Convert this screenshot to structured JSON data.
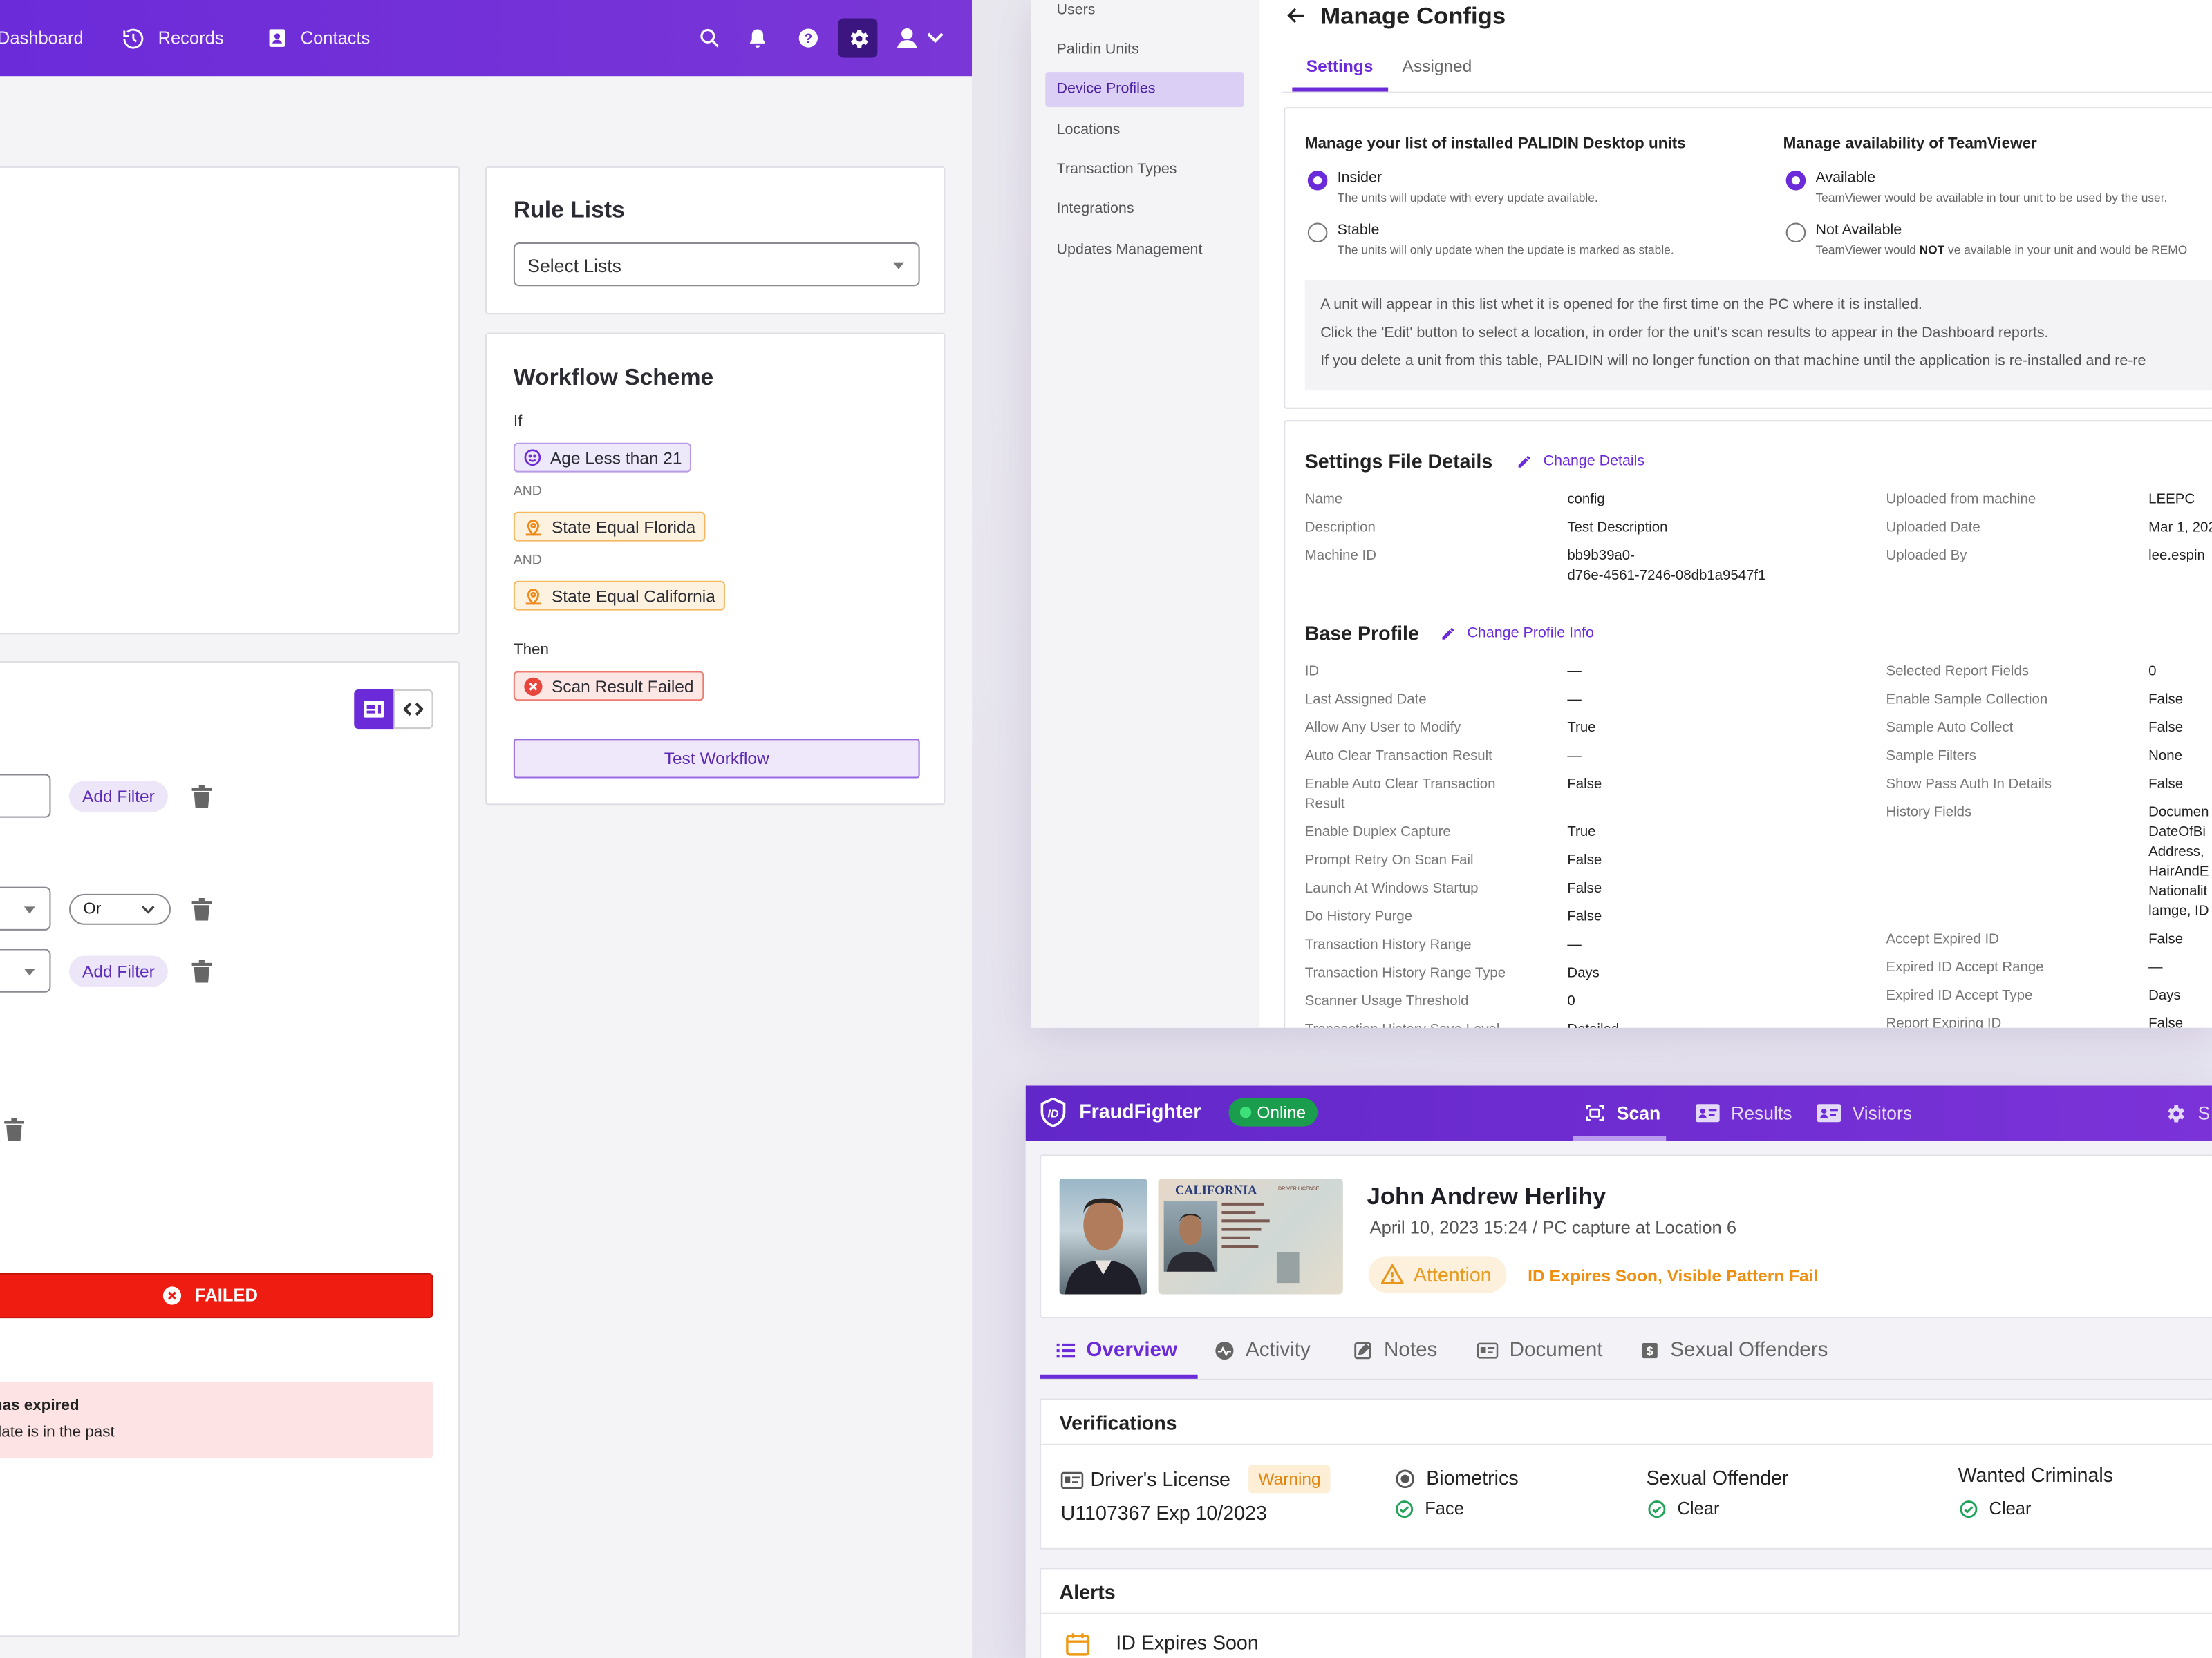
{
  "left_app": {
    "nav": {
      "dashboard": "Dashboard",
      "records": "Records",
      "contacts": "Contacts"
    },
    "rule_lists": {
      "title": "Rule Lists",
      "select_placeholder": "Select Lists"
    },
    "workflow": {
      "title": "Workflow Scheme",
      "if_label": "If",
      "conditions": [
        "Age Less than 21",
        "State Equal Florida",
        "State Equal California"
      ],
      "and_label": "AND",
      "then_label": "Then",
      "result": "Scan Result Failed",
      "test_button": "Test Workflow"
    },
    "filters": {
      "add_filter": "Add Filter",
      "or_option": "Or"
    },
    "status": {
      "failed": "FAILED",
      "message_line1": "has expired",
      "message_line2": "date is in the past"
    }
  },
  "configs": {
    "sidebar": [
      "Users",
      "Palidin Units",
      "Device Profiles",
      "Locations",
      "Transaction Types",
      "Integrations",
      "Updates Management"
    ],
    "title": "Manage Configs",
    "tabs": [
      "Settings",
      "Assigned"
    ],
    "units": {
      "heading": "Manage your list of installed PALIDIN Desktop units",
      "options": [
        {
          "label": "Insider",
          "desc": "The units will update with every update available."
        },
        {
          "label": "Stable",
          "desc": "The units will only update when the update is marked as stable."
        }
      ]
    },
    "teamviewer": {
      "heading": "Manage availability of TeamViewer",
      "options": [
        {
          "label": "Available",
          "desc": "TeamViewer would be available in tour unit to be used by the user."
        },
        {
          "label": "Not Available",
          "desc_a": "TeamViewer would ",
          "desc_b": "NOT",
          "desc_c": " ve available in your unit and would be REMO"
        }
      ]
    },
    "info": [
      "A unit will appear in this list whet it is opened for the first time on the PC where it is installed.",
      "Click the 'Edit' button to select a location, in order for the unit's scan results to appear in the Dashboard reports.",
      "If you delete a unit from this table, PALIDIN will no longer function on that machine until the application is re-installed and re-re"
    ],
    "file_details": {
      "title": "Settings File Details",
      "change": "Change Details",
      "left": [
        [
          "Name",
          "config"
        ],
        [
          "Description",
          "Test Description"
        ],
        [
          "Machine ID",
          "bb9b39a0-\nd76e-4561-7246-08db1a9547f1"
        ]
      ],
      "right": [
        [
          "Uploaded from machine",
          "LEEPC"
        ],
        [
          "Uploaded Date",
          "Mar 1, 202"
        ],
        [
          "Uploaded By",
          "lee.espin"
        ]
      ]
    },
    "base_profile": {
      "title": "Base Profile",
      "change": "Change Profile Info",
      "left": [
        [
          "ID",
          "—"
        ],
        [
          "Last Assigned Date",
          "—"
        ],
        [
          "Allow Any User to Modify",
          "True"
        ],
        [
          "Auto Clear Transaction Result",
          "—"
        ],
        [
          "Enable Auto Clear Transaction\nResult",
          "False"
        ],
        [
          "Enable Duplex Capture",
          "True"
        ],
        [
          "Prompt Retry On Scan Fail",
          "False"
        ],
        [
          "Launch At Windows Startup",
          "False"
        ],
        [
          "Do History Purge",
          "False"
        ],
        [
          "Transaction History Range",
          "—"
        ],
        [
          "Transaction History Range Type",
          "Days"
        ],
        [
          "Scanner Usage Threshold",
          "0"
        ],
        [
          "Transaction History Save Level",
          "Detailed"
        ]
      ],
      "right": [
        [
          "Selected Report Fields",
          "0"
        ],
        [
          "Enable Sample Collection",
          "False"
        ],
        [
          "Sample Auto Collect",
          "False"
        ],
        [
          "Sample Filters",
          "None"
        ],
        [
          "Show Pass Auth In Details",
          "False"
        ],
        [
          "History Fields",
          "Documen\nDateOfBi\nAddress,\nHairAndE\nNationalit\nlamge, ID"
        ],
        [
          "Accept Expired ID",
          "False"
        ],
        [
          "Expired ID Accept Range",
          "—"
        ],
        [
          "Expired ID Accept Type",
          "Days"
        ],
        [
          "Report Expiring ID",
          "False"
        ]
      ]
    }
  },
  "fraud": {
    "app_name": "FraudFighter",
    "status": "Online",
    "tabs": [
      "Scan",
      "Results",
      "Visitors"
    ],
    "settings_partial": "S",
    "person": {
      "name": "John Andrew Herlihy",
      "meta": "April 10, 2023 15:24 / PC capture at Location 6",
      "attention": "Attention",
      "issues": "ID Expires Soon, Visible Pattern Fail"
    },
    "license_card": {
      "state": "CALIFORNIA",
      "type": "DRIVER LICENSE"
    },
    "detail_tabs": [
      "Overview",
      "Activity",
      "Notes",
      "Document",
      "Sexual Offenders"
    ],
    "verifications": {
      "title": "Verifications",
      "drivers_license": "Driver's License",
      "warning": "Warning",
      "license_info": "U1107367 Exp 10/2023",
      "biometrics": "Biometrics",
      "face": "Face",
      "sexual_offender": "Sexual Offender",
      "clear": "Clear",
      "wanted": "Wanted Criminals"
    },
    "alerts": {
      "title": "Alerts",
      "first": "ID Expires Soon"
    }
  },
  "colors": {
    "purple": "#6c2bd9",
    "failed_red": "#ef1c12",
    "warning_orange": "#f5a524",
    "success_green": "#22a35a"
  }
}
